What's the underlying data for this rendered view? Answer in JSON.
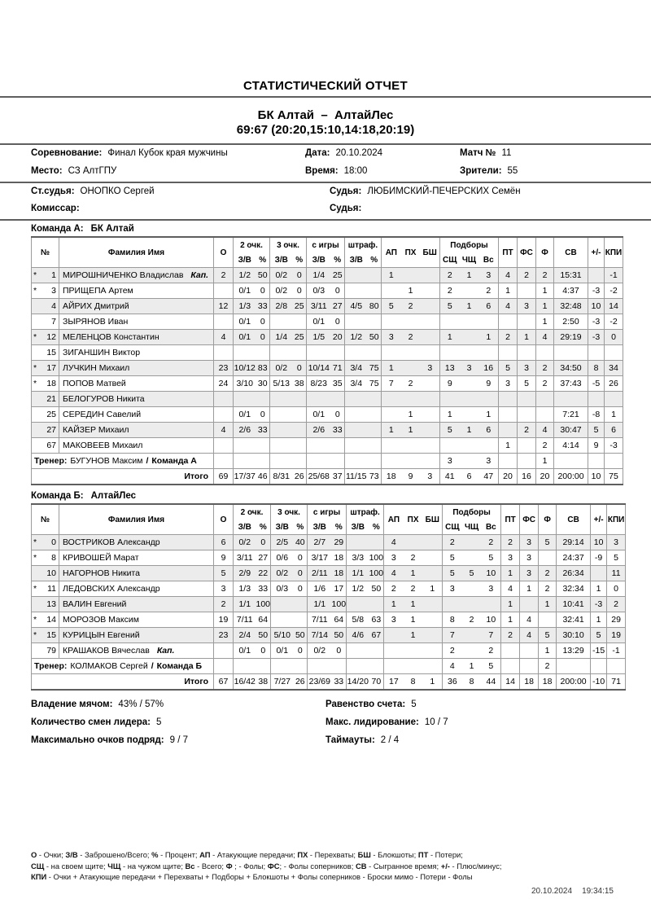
{
  "report": {
    "title": "СТАТИСТИЧЕСКИЙ ОТЧЕТ",
    "matchup": "БК Алтай  –  АлтайЛес",
    "score_line": "69:67 (20:20,15:10,14:18,20:19)"
  },
  "meta": {
    "competition_label": "Соревнование:",
    "competition": "Финал Кубок края мужчины",
    "date_label": "Дата:",
    "date": "20.10.2024",
    "match_no_label": "Матч №",
    "match_no": "11",
    "venue_label": "Место:",
    "venue": "СЗ АлтГПУ",
    "time_label": "Время:",
    "time": "18:00",
    "spectators_label": "Зрители:",
    "spectators": "55",
    "chief_ref_label": "Ст.судья:",
    "chief_ref": "ОНОПКО Сергей",
    "ref_label": "Судья:",
    "ref": "ЛЮБИМСКИЙ-ПЕЧЕРСКИХ Семён",
    "commissar_label": "Комиссар:",
    "commissar": "",
    "ref2_label": "Судья:",
    "ref2": ""
  },
  "table_header": {
    "num": "№",
    "name": "Фамилия Имя",
    "o": "О",
    "g2": "2 очк.",
    "g3": "3 очк.",
    "fg": "с игры",
    "ft": "штраф.",
    "zv": "З/В",
    "pct": "%",
    "ap": "АП",
    "px": "ПХ",
    "bsh": "БШ",
    "rebounds": "Подборы",
    "sq": "СЩ",
    "chq": "ЧЩ",
    "vs": "Вс",
    "pt": "ПТ",
    "fs": "ФС",
    "f": "Ф",
    "sv": "СВ",
    "pm": "+/-",
    "kpi": "КПИ"
  },
  "team_a": {
    "label": "Команда А:",
    "name": "БК Алтай",
    "players": [
      {
        "star": "*",
        "num": "1",
        "name": "МИРОШНИЧЕНКО Владислав",
        "cap": "Кап.",
        "o": "2",
        "z2": "1/2",
        "p2": "50",
        "z3": "0/2",
        "p3": "0",
        "zfg": "1/4",
        "pfg": "25",
        "ap": "1",
        "sq": "2",
        "chq": "1",
        "vs": "3",
        "pt": "4",
        "fs": "2",
        "f": "2",
        "sv": "15:31",
        "kpi": "-1"
      },
      {
        "star": "*",
        "num": "3",
        "name": "ПРИЩЕПА Артем",
        "z2": "0/1",
        "p2": "0",
        "z3": "0/2",
        "p3": "0",
        "zfg": "0/3",
        "pfg": "0",
        "px": "1",
        "sq": "2",
        "vs": "2",
        "pt": "1",
        "f": "1",
        "sv": "4:37",
        "pm": "-3",
        "kpi": "-2"
      },
      {
        "num": "4",
        "name": "АЙРИХ Дмитрий",
        "o": "12",
        "z2": "1/3",
        "p2": "33",
        "z3": "2/8",
        "p3": "25",
        "zfg": "3/11",
        "pfg": "27",
        "zft": "4/5",
        "pft": "80",
        "ap": "5",
        "px": "2",
        "sq": "5",
        "chq": "1",
        "vs": "6",
        "pt": "4",
        "fs": "3",
        "f": "1",
        "sv": "32:48",
        "pm": "10",
        "kpi": "14"
      },
      {
        "num": "7",
        "name": "ЗЫРЯНОВ Иван",
        "z2": "0/1",
        "p2": "0",
        "zfg": "0/1",
        "pfg": "0",
        "f": "1",
        "sv": "2:50",
        "pm": "-3",
        "kpi": "-2"
      },
      {
        "star": "*",
        "num": "12",
        "name": "МЕЛЕНЦОВ Константин",
        "o": "4",
        "z2": "0/1",
        "p2": "0",
        "z3": "1/4",
        "p3": "25",
        "zfg": "1/5",
        "pfg": "20",
        "zft": "1/2",
        "pft": "50",
        "ap": "3",
        "px": "2",
        "sq": "1",
        "vs": "1",
        "pt": "2",
        "fs": "1",
        "f": "4",
        "sv": "29:19",
        "pm": "-3",
        "kpi": "0"
      },
      {
        "num": "15",
        "name": "ЗИГАНШИН Виктор"
      },
      {
        "star": "*",
        "num": "17",
        "name": "ЛУЧКИН Михаил",
        "o": "23",
        "z2": "10/12",
        "p2": "83",
        "z3": "0/2",
        "p3": "0",
        "zfg": "10/14",
        "pfg": "71",
        "zft": "3/4",
        "pft": "75",
        "ap": "1",
        "bsh": "3",
        "sq": "13",
        "chq": "3",
        "vs": "16",
        "pt": "5",
        "fs": "3",
        "f": "2",
        "sv": "34:50",
        "pm": "8",
        "kpi": "34"
      },
      {
        "star": "*",
        "num": "18",
        "name": "ПОПОВ Матвей",
        "o": "24",
        "z2": "3/10",
        "p2": "30",
        "z3": "5/13",
        "p3": "38",
        "zfg": "8/23",
        "pfg": "35",
        "zft": "3/4",
        "pft": "75",
        "ap": "7",
        "px": "2",
        "sq": "9",
        "vs": "9",
        "pt": "3",
        "fs": "5",
        "f": "2",
        "sv": "37:43",
        "pm": "-5",
        "kpi": "26"
      },
      {
        "num": "21",
        "name": "БЕЛОГУРОВ Никита"
      },
      {
        "num": "25",
        "name": "СЕРЕДИН Савелий",
        "z2": "0/1",
        "p2": "0",
        "zfg": "0/1",
        "pfg": "0",
        "px": "1",
        "sq": "1",
        "vs": "1",
        "sv": "7:21",
        "pm": "-8",
        "kpi": "1"
      },
      {
        "num": "27",
        "name": "КАЙЗЕР Михаил",
        "o": "4",
        "z2": "2/6",
        "p2": "33",
        "zfg": "2/6",
        "pfg": "33",
        "ap": "1",
        "px": "1",
        "sq": "5",
        "chq": "1",
        "vs": "6",
        "fs": "2",
        "f": "4",
        "sv": "30:47",
        "pm": "5",
        "kpi": "6"
      },
      {
        "num": "67",
        "name": "МАКОВЕЕВ Михаил",
        "pt": "1",
        "f": "2",
        "sv": "4:14",
        "pm": "9",
        "kpi": "-3"
      }
    ],
    "coach": {
      "label": "Тренер:",
      "name": "БУГУНОВ Максим",
      "sep": "/",
      "team": "Команда А",
      "sq": "3",
      "vs": "3",
      "f": "1"
    },
    "total": {
      "label": "Итого",
      "o": "69",
      "z2": "17/37",
      "p2": "46",
      "z3": "8/31",
      "p3": "26",
      "zfg": "25/68",
      "pfg": "37",
      "zft": "11/15",
      "pft": "73",
      "ap": "18",
      "px": "9",
      "bsh": "3",
      "sq": "41",
      "chq": "6",
      "vs": "47",
      "pt": "20",
      "fs": "16",
      "f": "20",
      "sv": "200:00",
      "pm": "10",
      "kpi": "75"
    }
  },
  "team_b": {
    "label": "Команда Б:",
    "name": "АлтайЛес",
    "players": [
      {
        "star": "*",
        "num": "0",
        "name": "ВОСТРИКОВ Александр",
        "o": "6",
        "z2": "0/2",
        "p2": "0",
        "z3": "2/5",
        "p3": "40",
        "zfg": "2/7",
        "pfg": "29",
        "ap": "4",
        "sq": "2",
        "vs": "2",
        "pt": "2",
        "fs": "3",
        "f": "5",
        "sv": "29:14",
        "pm": "10",
        "kpi": "3"
      },
      {
        "star": "*",
        "num": "8",
        "name": "КРИВОШЕЙ Марат",
        "o": "9",
        "z2": "3/11",
        "p2": "27",
        "z3": "0/6",
        "p3": "0",
        "zfg": "3/17",
        "pfg": "18",
        "zft": "3/3",
        "pft": "100",
        "ap": "3",
        "px": "2",
        "sq": "5",
        "vs": "5",
        "pt": "3",
        "fs": "3",
        "sv": "24:37",
        "pm": "-9",
        "kpi": "5"
      },
      {
        "num": "10",
        "name": "НАГОРНОВ Никита",
        "o": "5",
        "z2": "2/9",
        "p2": "22",
        "z3": "0/2",
        "p3": "0",
        "zfg": "2/11",
        "pfg": "18",
        "zft": "1/1",
        "pft": "100",
        "ap": "4",
        "px": "1",
        "sq": "5",
        "chq": "5",
        "vs": "10",
        "pt": "1",
        "fs": "3",
        "f": "2",
        "sv": "26:34",
        "kpi": "11"
      },
      {
        "star": "*",
        "num": "11",
        "name": "ЛЕДОВСКИХ Александр",
        "o": "3",
        "z2": "1/3",
        "p2": "33",
        "z3": "0/3",
        "p3": "0",
        "zfg": "1/6",
        "pfg": "17",
        "zft": "1/2",
        "pft": "50",
        "ap": "2",
        "px": "2",
        "bsh": "1",
        "sq": "3",
        "vs": "3",
        "pt": "4",
        "fs": "1",
        "f": "2",
        "sv": "32:34",
        "pm": "1",
        "kpi": "0"
      },
      {
        "num": "13",
        "name": "ВАЛИН Евгений",
        "o": "2",
        "z2": "1/1",
        "p2": "100",
        "zfg": "1/1",
        "pfg": "100",
        "ap": "1",
        "px": "1",
        "pt": "1",
        "f": "1",
        "sv": "10:41",
        "pm": "-3",
        "kpi": "2"
      },
      {
        "star": "*",
        "num": "14",
        "name": "МОРОЗОВ Максим",
        "o": "19",
        "z2": "7/11",
        "p2": "64",
        "zfg": "7/11",
        "pfg": "64",
        "zft": "5/8",
        "pft": "63",
        "ap": "3",
        "px": "1",
        "sq": "8",
        "chq": "2",
        "vs": "10",
        "pt": "1",
        "fs": "4",
        "sv": "32:41",
        "pm": "1",
        "kpi": "29"
      },
      {
        "star": "*",
        "num": "15",
        "name": "КУРИЦЫН Евгений",
        "o": "23",
        "z2": "2/4",
        "p2": "50",
        "z3": "5/10",
        "p3": "50",
        "zfg": "7/14",
        "pfg": "50",
        "zft": "4/6",
        "pft": "67",
        "px": "1",
        "sq": "7",
        "vs": "7",
        "pt": "2",
        "fs": "4",
        "f": "5",
        "sv": "30:10",
        "pm": "5",
        "kpi": "19"
      },
      {
        "num": "79",
        "name": "КРАШАКОВ Вячеслав",
        "cap": "Кап.",
        "z2": "0/1",
        "p2": "0",
        "z3": "0/1",
        "p3": "0",
        "zfg": "0/2",
        "pfg": "0",
        "sq": "2",
        "vs": "2",
        "f": "1",
        "sv": "13:29",
        "pm": "-15",
        "kpi": "-1"
      }
    ],
    "coach": {
      "label": "Тренер:",
      "name": "КОЛМАКОВ Сергей",
      "sep": "/",
      "team": "Команда Б",
      "sq": "4",
      "chq": "1",
      "vs": "5",
      "f": "2"
    },
    "total": {
      "label": "Итого",
      "o": "67",
      "z2": "16/42",
      "p2": "38",
      "z3": "7/27",
      "p3": "26",
      "zfg": "23/69",
      "pfg": "33",
      "zft": "14/20",
      "pft": "70",
      "ap": "17",
      "px": "8",
      "bsh": "1",
      "sq": "36",
      "chq": "8",
      "vs": "44",
      "pt": "14",
      "fs": "18",
      "f": "18",
      "sv": "200:00",
      "pm": "-10",
      "kpi": "71"
    }
  },
  "summary": {
    "possession_label": "Владение мячом:",
    "possession": "43% / 57%",
    "ties_label": "Равенство счета:",
    "ties": "5",
    "lead_changes_label": "Количество смен лидера:",
    "lead_changes": "5",
    "max_lead_label": "Макс. лидирование:",
    "max_lead": "10 / 7",
    "max_run_label": "Максимально очков подряд:",
    "max_run": "9 / 7",
    "timeouts_label": "Таймауты:",
    "timeouts": "2 / 4"
  },
  "legend": {
    "lines": [
      [
        [
          "О",
          " - Очки; "
        ],
        [
          "З/В",
          " - Заброшено/Всего; "
        ],
        [
          "%",
          " - Процент; "
        ],
        [
          "АП",
          " - Атакующие передачи; "
        ],
        [
          "ПХ",
          " - Перехваты; "
        ],
        [
          "БШ",
          " - Блокшоты; "
        ],
        [
          "ПТ",
          " - Потери;"
        ]
      ],
      [
        [
          "СЩ",
          " - на своем щите; "
        ],
        [
          "ЧЩ",
          " - на чужом щите; "
        ],
        [
          "Вс",
          " - Всего; "
        ],
        [
          "Ф",
          " ; - Фолы; "
        ],
        [
          "ФС",
          "; - Фолы соперников; "
        ],
        [
          "СВ",
          " - Сыгранное время; "
        ],
        [
          "+/-",
          " - Плюс/минус;"
        ]
      ],
      [
        [
          "КПИ",
          " - Очки + Атакующие передачи + Перехваты + Подборы + Блокшоты + Фолы соперников - Броски мимо - Потери - Фолы"
        ]
      ]
    ]
  },
  "footer": {
    "date": "20.10.2024",
    "time": "19:34:15"
  }
}
